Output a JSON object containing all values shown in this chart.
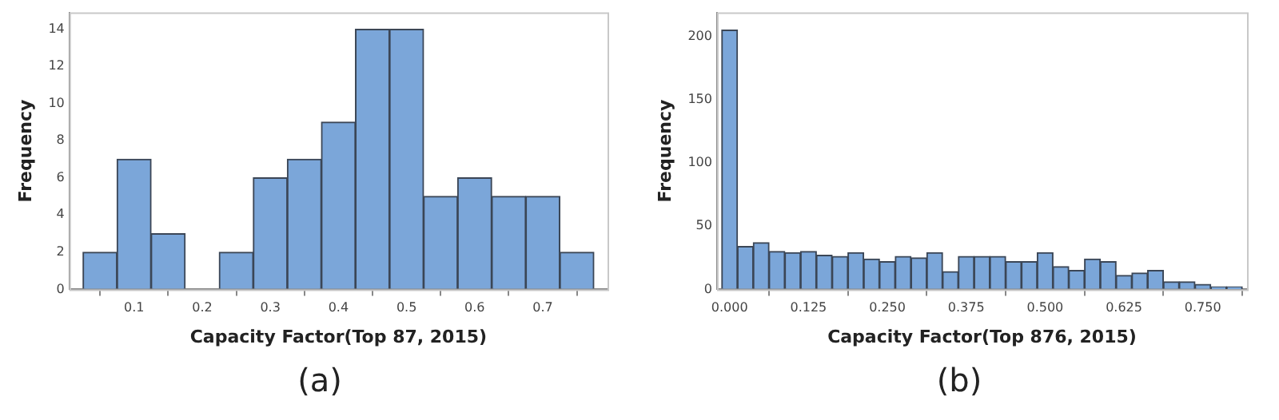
{
  "chart_data": [
    {
      "type": "histogram",
      "xlabel": "Capacity Factor(Top 87, 2015)",
      "ylabel": "Frequency",
      "annotations": [
        "(a)"
      ],
      "color": "#7ba6d9",
      "bins": [
        0.025,
        0.075,
        0.125,
        0.175,
        0.225,
        0.275,
        0.325,
        0.375,
        0.425,
        0.475,
        0.525,
        0.575,
        0.625,
        0.675,
        0.725,
        0.775
      ],
      "values": [
        2,
        7,
        3,
        0,
        2,
        6,
        7,
        9,
        14,
        14,
        5,
        6,
        5,
        5,
        2
      ],
      "xlim": [
        0.005,
        0.795
      ],
      "xticks": [
        0.1,
        0.2,
        0.3,
        0.4,
        0.5,
        0.6,
        0.7
      ],
      "ylim": [
        0,
        14.9
      ],
      "yticks": [
        0,
        2,
        4,
        6,
        8,
        10,
        12,
        14
      ],
      "grid": false,
      "legend": false
    },
    {
      "type": "histogram",
      "xlabel": "Capacity Factor(Top 876, 2015)",
      "ylabel": "Frequency",
      "annotations": [
        "(b)"
      ],
      "color": "#7ba6d9",
      "bins": [
        -0.0125,
        0.0125,
        0.0375,
        0.0625,
        0.0875,
        0.1125,
        0.1375,
        0.1625,
        0.1875,
        0.2125,
        0.2375,
        0.2625,
        0.2875,
        0.3125,
        0.3375,
        0.3625,
        0.3875,
        0.4125,
        0.4375,
        0.4625,
        0.4875,
        0.5125,
        0.5375,
        0.5625,
        0.5875,
        0.6125,
        0.6375,
        0.6625,
        0.6875,
        0.7125,
        0.7375,
        0.7625,
        0.7875,
        0.8125
      ],
      "values": [
        205,
        34,
        37,
        30,
        29,
        30,
        27,
        26,
        29,
        24,
        22,
        26,
        25,
        29,
        14,
        26,
        26,
        26,
        22,
        22,
        29,
        18,
        15,
        24,
        22,
        11,
        13,
        15,
        6,
        6,
        4,
        2,
        2
      ],
      "xlim": [
        -0.02,
        0.82
      ],
      "xticks": [
        {
          "value": 0,
          "label": "0.000"
        },
        {
          "value": 0.125,
          "label": "0.125"
        },
        {
          "value": 0.25,
          "label": "0.250"
        },
        {
          "value": 0.375,
          "label": "0.375"
        },
        {
          "value": 0.5,
          "label": "0.500"
        },
        {
          "value": 0.625,
          "label": "0.625"
        },
        {
          "value": 0.75,
          "label": "0.750"
        }
      ],
      "ylim": [
        0,
        219
      ],
      "yticks": [
        0,
        50,
        100,
        150,
        200
      ],
      "grid": false,
      "legend": false
    }
  ]
}
